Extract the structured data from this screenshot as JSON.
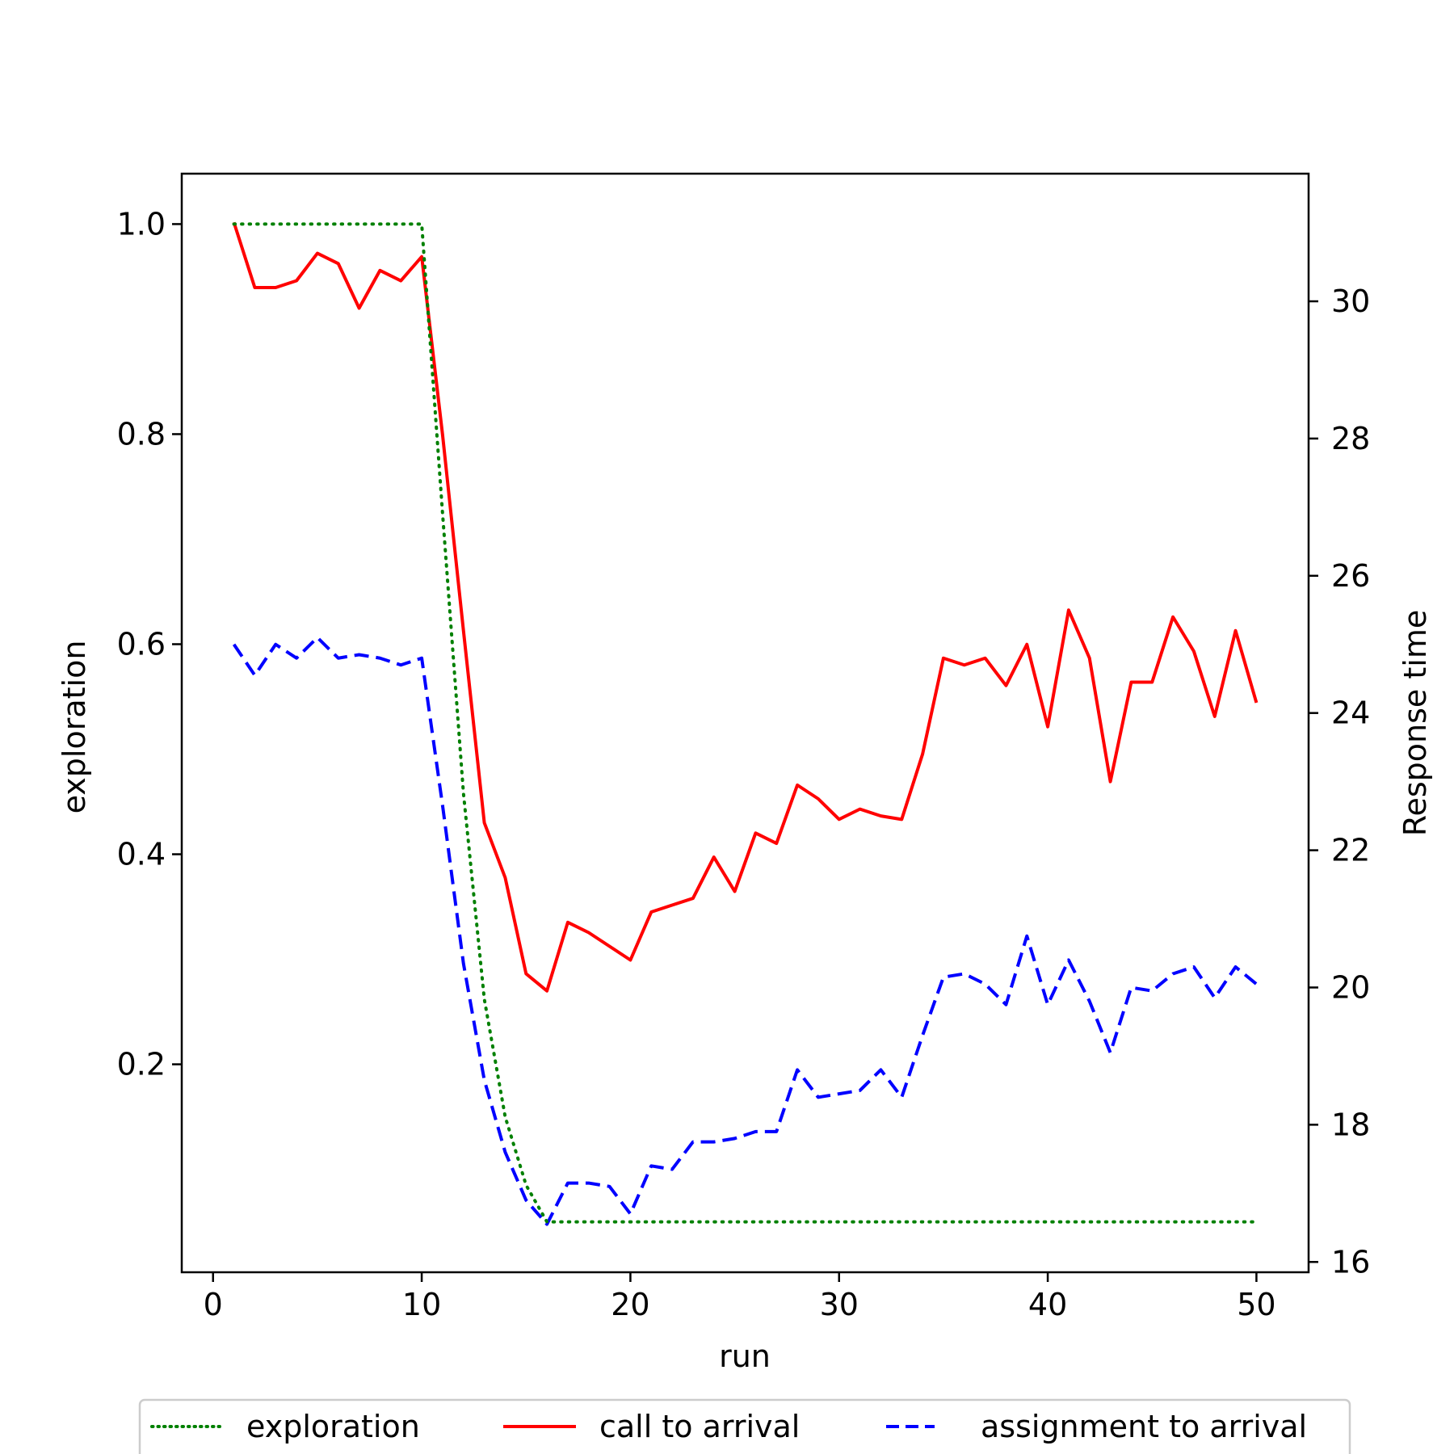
{
  "chart_data": {
    "type": "line",
    "title": "",
    "xlabel": "run",
    "ylabel_left": "exploration",
    "ylabel_right": "Response time",
    "xlim": [
      -1.5,
      52.5
    ],
    "ylim_left": [
      0.002,
      1.048
    ],
    "ylim_right": [
      15.85,
      31.86
    ],
    "xticks": [
      0,
      10,
      20,
      30,
      40,
      50
    ],
    "yticks_left": [
      0.2,
      0.4,
      0.6,
      0.8,
      1.0
    ],
    "yticks_right": [
      16,
      18,
      20,
      22,
      24,
      26,
      28,
      30
    ],
    "grid": false,
    "legend_position": "bottom-center",
    "x": [
      1,
      2,
      3,
      4,
      5,
      6,
      7,
      8,
      9,
      10,
      11,
      12,
      13,
      14,
      15,
      16,
      17,
      18,
      19,
      20,
      21,
      22,
      23,
      24,
      25,
      26,
      27,
      28,
      29,
      30,
      31,
      32,
      33,
      34,
      35,
      36,
      37,
      38,
      39,
      40,
      41,
      42,
      43,
      44,
      45,
      46,
      47,
      48,
      49,
      50
    ],
    "series": [
      {
        "name": "exploration",
        "axis": "left",
        "color": "#008000",
        "style": "dotted",
        "values": [
          1.0,
          1.0,
          1.0,
          1.0,
          1.0,
          1.0,
          1.0,
          1.0,
          1.0,
          1.0,
          0.724,
          0.458,
          0.262,
          0.15,
          0.085,
          0.05,
          0.05,
          0.05,
          0.05,
          0.05,
          0.05,
          0.05,
          0.05,
          0.05,
          0.05,
          0.05,
          0.05,
          0.05,
          0.05,
          0.05,
          0.05,
          0.05,
          0.05,
          0.05,
          0.05,
          0.05,
          0.05,
          0.05,
          0.05,
          0.05,
          0.05,
          0.05,
          0.05,
          0.05,
          0.05,
          0.05,
          0.05,
          0.05,
          0.05,
          0.05
        ]
      },
      {
        "name": "call to arrival",
        "axis": "right",
        "color": "#ff0000",
        "style": "solid",
        "values": [
          31.15,
          30.2,
          30.2,
          30.3,
          30.7,
          30.55,
          29.9,
          30.45,
          30.3,
          30.65,
          28.05,
          25.2,
          22.4,
          21.6,
          20.2,
          19.95,
          20.95,
          20.8,
          20.6,
          20.4,
          21.1,
          21.2,
          21.3,
          21.9,
          21.4,
          22.25,
          22.1,
          22.95,
          22.75,
          22.45,
          22.6,
          22.5,
          22.45,
          23.4,
          24.8,
          24.7,
          24.8,
          24.4,
          25.0,
          23.8,
          25.5,
          24.8,
          23.0,
          24.45,
          24.45,
          25.4,
          24.9,
          23.95,
          25.2,
          24.15
        ]
      },
      {
        "name": "assignment to arrival",
        "axis": "right",
        "color": "#0000ff",
        "style": "dashed",
        "values": [
          25.0,
          24.55,
          25.0,
          24.8,
          25.1,
          24.8,
          24.85,
          24.8,
          24.7,
          24.8,
          22.65,
          20.35,
          18.65,
          17.6,
          16.9,
          16.55,
          17.15,
          17.15,
          17.1,
          16.7,
          17.4,
          17.35,
          17.75,
          17.75,
          17.8,
          17.9,
          17.9,
          18.8,
          18.4,
          18.45,
          18.5,
          18.8,
          18.4,
          19.3,
          20.15,
          20.2,
          20.05,
          19.75,
          20.75,
          19.75,
          20.4,
          19.8,
          19.05,
          20.0,
          19.95,
          20.2,
          20.3,
          19.85,
          20.3,
          20.05
        ]
      }
    ]
  }
}
